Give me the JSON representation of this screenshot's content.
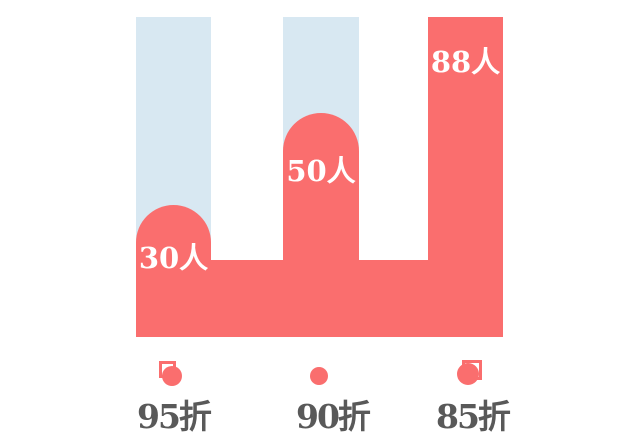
{
  "chart_data": {
    "type": "bar",
    "categories": [
      "95折",
      "90折",
      "85折"
    ],
    "values": [
      30,
      50,
      88
    ],
    "unit": "人",
    "data_labels": [
      "30人",
      "50人",
      "88人"
    ],
    "title": "",
    "xlabel": "",
    "ylabel": "",
    "ylim": [
      0,
      88
    ],
    "grid": false,
    "legend_position": "bottom",
    "bar_color": "#fa6e6e",
    "track_color": "#d8e8f2",
    "label_text_color": "#ffffff",
    "tier_text_color": "#595959"
  },
  "bars": [
    {
      "value": 30,
      "value_label": "30人",
      "tier_label": "95折",
      "marker": "circle-in-square-icon"
    },
    {
      "value": 50,
      "value_label": "50人",
      "tier_label": "90折",
      "marker": "dot-icon"
    },
    {
      "value": 88,
      "value_label": "88人",
      "tier_label": "85折",
      "marker": "circle-in-square-icon"
    }
  ],
  "colors": {
    "accent_red": "#fa6e6e",
    "track_blue": "#d8e8f2",
    "tier_gray": "#595959",
    "background": "#ffffff"
  }
}
